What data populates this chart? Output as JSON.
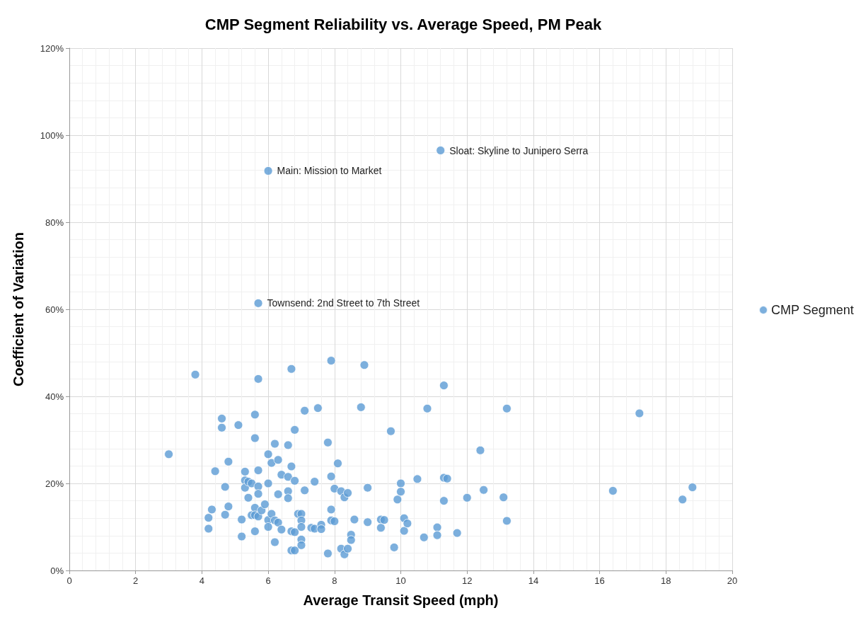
{
  "chart_data": {
    "type": "scatter",
    "title": "CMP Segment Reliability vs. Average Speed, PM Peak",
    "xlabel": "Average Transit Speed (mph)",
    "ylabel": "Coefficient of Variation",
    "xlim": [
      0,
      20
    ],
    "xticks": [
      0,
      2,
      4,
      6,
      8,
      10,
      12,
      14,
      16,
      18,
      20
    ],
    "ylim": [
      0,
      120
    ],
    "yticks": [
      {
        "value": 0,
        "label": "0%"
      },
      {
        "value": 20,
        "label": "20%"
      },
      {
        "value": 40,
        "label": "40%"
      },
      {
        "value": 60,
        "label": "60%"
      },
      {
        "value": 80,
        "label": "80%"
      },
      {
        "value": 100,
        "label": "100%"
      },
      {
        "value": 120,
        "label": "120%"
      }
    ],
    "grid": true,
    "legend": "right",
    "marker": "circle",
    "series": [
      {
        "name": "CMP Segment",
        "color": "#5b9bd5",
        "x": [
          6.0,
          11.2,
          5.7,
          3.0,
          3.8,
          4.2,
          4.2,
          4.3,
          4.4,
          4.6,
          4.6,
          4.7,
          4.7,
          4.8,
          4.8,
          5.1,
          5.2,
          5.2,
          5.3,
          5.3,
          5.3,
          5.4,
          5.4,
          5.5,
          5.5,
          5.6,
          5.6,
          5.6,
          5.6,
          5.6,
          5.7,
          5.7,
          5.7,
          5.7,
          5.7,
          5.8,
          5.9,
          6.0,
          6.0,
          6.0,
          6.0,
          6.1,
          6.1,
          6.2,
          6.2,
          6.2,
          6.3,
          6.3,
          6.3,
          6.4,
          6.4,
          6.6,
          6.6,
          6.6,
          6.6,
          6.7,
          6.7,
          6.7,
          6.7,
          6.8,
          6.8,
          6.8,
          6.8,
          6.9,
          7.0,
          7.0,
          7.0,
          7.0,
          7.0,
          7.1,
          7.1,
          7.3,
          7.4,
          7.4,
          7.5,
          7.6,
          7.6,
          7.8,
          7.8,
          7.9,
          7.9,
          7.9,
          7.9,
          8.0,
          8.0,
          8.1,
          8.2,
          8.2,
          8.3,
          8.3,
          8.4,
          8.4,
          8.5,
          8.5,
          8.6,
          8.8,
          8.9,
          9.0,
          9.0,
          9.4,
          9.4,
          9.5,
          9.7,
          9.8,
          9.9,
          10.0,
          10.0,
          10.1,
          10.1,
          10.2,
          10.5,
          10.7,
          10.8,
          11.1,
          11.1,
          11.3,
          11.3,
          11.3,
          11.4,
          11.7,
          12.0,
          12.4,
          12.5,
          13.1,
          13.2,
          13.2,
          16.4,
          17.2,
          18.5,
          18.8
        ],
        "values": [
          91.8,
          96.5,
          61.4,
          26.7,
          45,
          12.1,
          9.6,
          14,
          22.8,
          34.9,
          32.8,
          19.2,
          12.8,
          25,
          14.7,
          33.4,
          11.7,
          7.8,
          22.7,
          20.7,
          19,
          16.7,
          20.4,
          20,
          12.7,
          35.8,
          30.4,
          14.4,
          12.7,
          9,
          44,
          23,
          19.3,
          17.6,
          12.4,
          13.8,
          15.2,
          26.7,
          20,
          11.6,
          10,
          24.7,
          13,
          29.1,
          11.5,
          6.5,
          25.4,
          17.5,
          11,
          22,
          9.4,
          28.8,
          21.5,
          18.2,
          16.6,
          46.3,
          23.9,
          9,
          4.6,
          32.3,
          20.6,
          8.8,
          4.6,
          13,
          13,
          11.5,
          10,
          7.1,
          5.8,
          36.7,
          18.4,
          9.8,
          20.4,
          9.6,
          37.3,
          10.5,
          9.5,
          29.4,
          3.9,
          48.2,
          21.6,
          14,
          11.5,
          18.8,
          11.3,
          24.6,
          18.2,
          5,
          16.8,
          3.7,
          17.8,
          5,
          8.2,
          7,
          11.7,
          37.5,
          47.2,
          19,
          11.1,
          11.7,
          9.8,
          11.6,
          32,
          5.3,
          16.3,
          20,
          18.1,
          12,
          9.1,
          10.8,
          21,
          7.6,
          37.2,
          9.9,
          8.1,
          42.5,
          21.3,
          16,
          21.1,
          8.6,
          16.7,
          27.6,
          18.5,
          16.8,
          37.2,
          11.4,
          18.3,
          36.1,
          16.3,
          19.1
        ]
      }
    ],
    "annotations": [
      {
        "text": "Main: Mission to Market",
        "x": 6.0,
        "y": 91.8
      },
      {
        "text": "Sloat: Skyline to Junipero Serra",
        "x": 11.2,
        "y": 96.5
      },
      {
        "text": "Townsend: 2nd Street to 7th Street",
        "x": 5.7,
        "y": 61.4
      }
    ]
  }
}
